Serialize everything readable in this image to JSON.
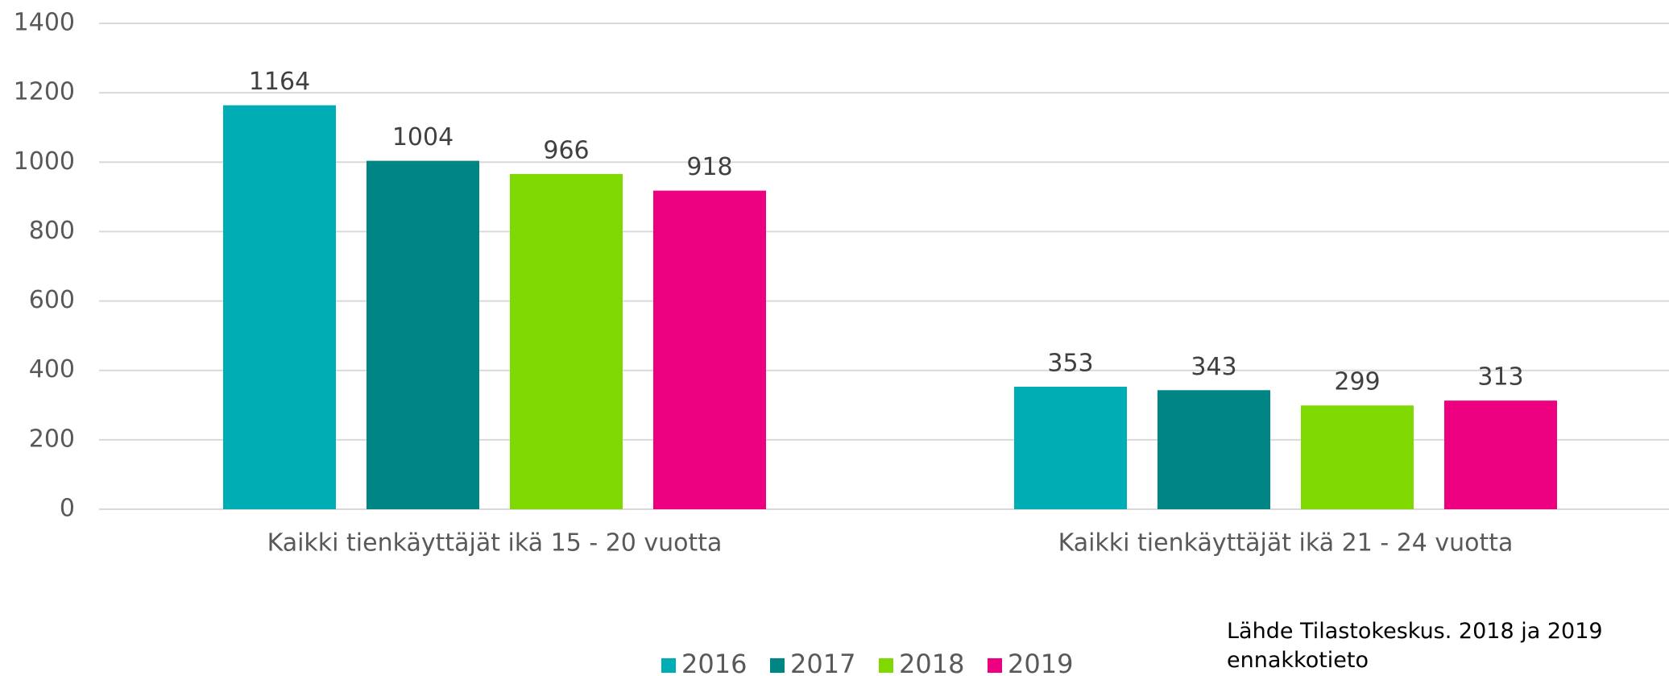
{
  "chart_data": {
    "type": "bar",
    "categories": [
      "Kaikki tienkäyttäjät ikä 15 - 20 vuotta",
      "Kaikki tienkäyttäjät ikä 21 - 24 vuotta"
    ],
    "series": [
      {
        "name": "2016",
        "color": "#00adb5",
        "values": [
          1164,
          353
        ]
      },
      {
        "name": "2017",
        "color": "#008585",
        "values": [
          1004,
          343
        ]
      },
      {
        "name": "2018",
        "color": "#7fd800",
        "values": [
          966,
          299
        ]
      },
      {
        "name": "2019",
        "color": "#ec0080",
        "values": [
          918,
          313
        ]
      }
    ],
    "ylim": [
      0,
      1400
    ],
    "yticks": [
      0,
      200,
      400,
      600,
      800,
      1000,
      1200,
      1400
    ],
    "grid": true,
    "legend": "bottom",
    "annotation": "Lähde Tilastokeskus. 2018 ja 2019 ennakkotieto"
  }
}
